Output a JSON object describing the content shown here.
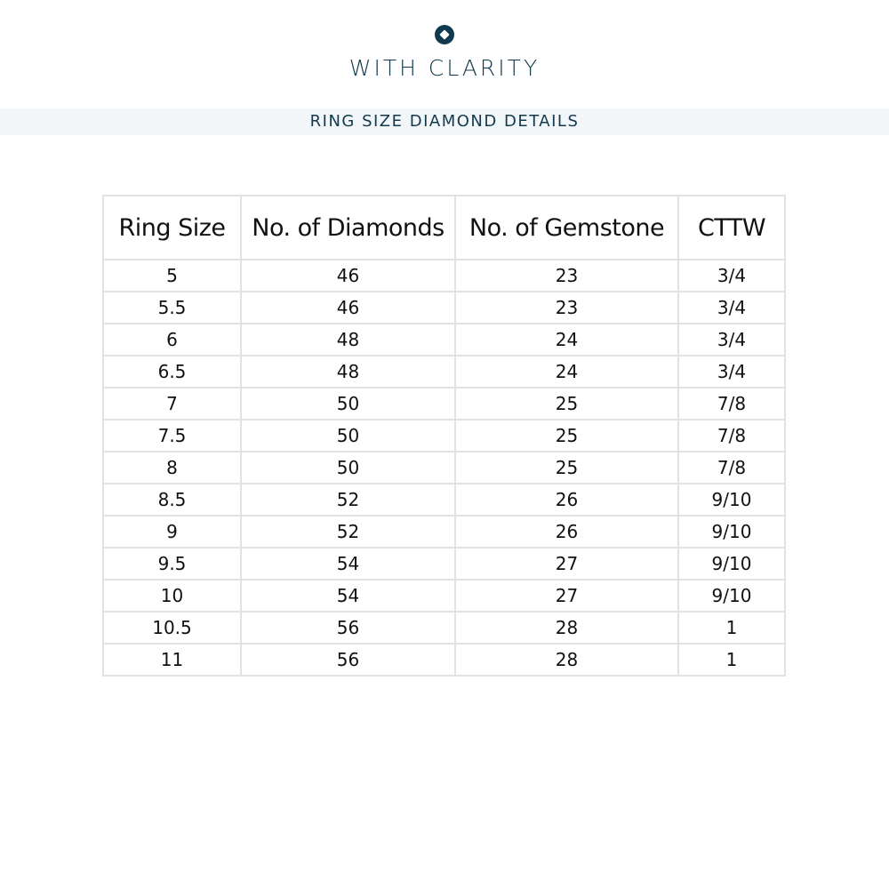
{
  "brand": {
    "name": "WITH CLARITY",
    "icon": "diamond-circle-logo",
    "color": "#123a4e"
  },
  "section_title": "RING SIZE DIAMOND DETAILS",
  "table": {
    "headers": [
      "Ring Size",
      "No. of Diamonds",
      "No. of Gemstone",
      "CTTW"
    ],
    "rows": [
      [
        "5",
        "46",
        "23",
        "3/4"
      ],
      [
        "5.5",
        "46",
        "23",
        "3/4"
      ],
      [
        "6",
        "48",
        "24",
        "3/4"
      ],
      [
        "6.5",
        "48",
        "24",
        "3/4"
      ],
      [
        "7",
        "50",
        "25",
        "7/8"
      ],
      [
        "7.5",
        "50",
        "25",
        "7/8"
      ],
      [
        "8",
        "50",
        "25",
        "7/8"
      ],
      [
        "8.5",
        "52",
        "26",
        "9/10"
      ],
      [
        "9",
        "52",
        "26",
        "9/10"
      ],
      [
        "9.5",
        "54",
        "27",
        "9/10"
      ],
      [
        "10",
        "54",
        "27",
        "9/10"
      ],
      [
        "10.5",
        "56",
        "28",
        "1"
      ],
      [
        "11",
        "56",
        "28",
        "1"
      ]
    ]
  }
}
